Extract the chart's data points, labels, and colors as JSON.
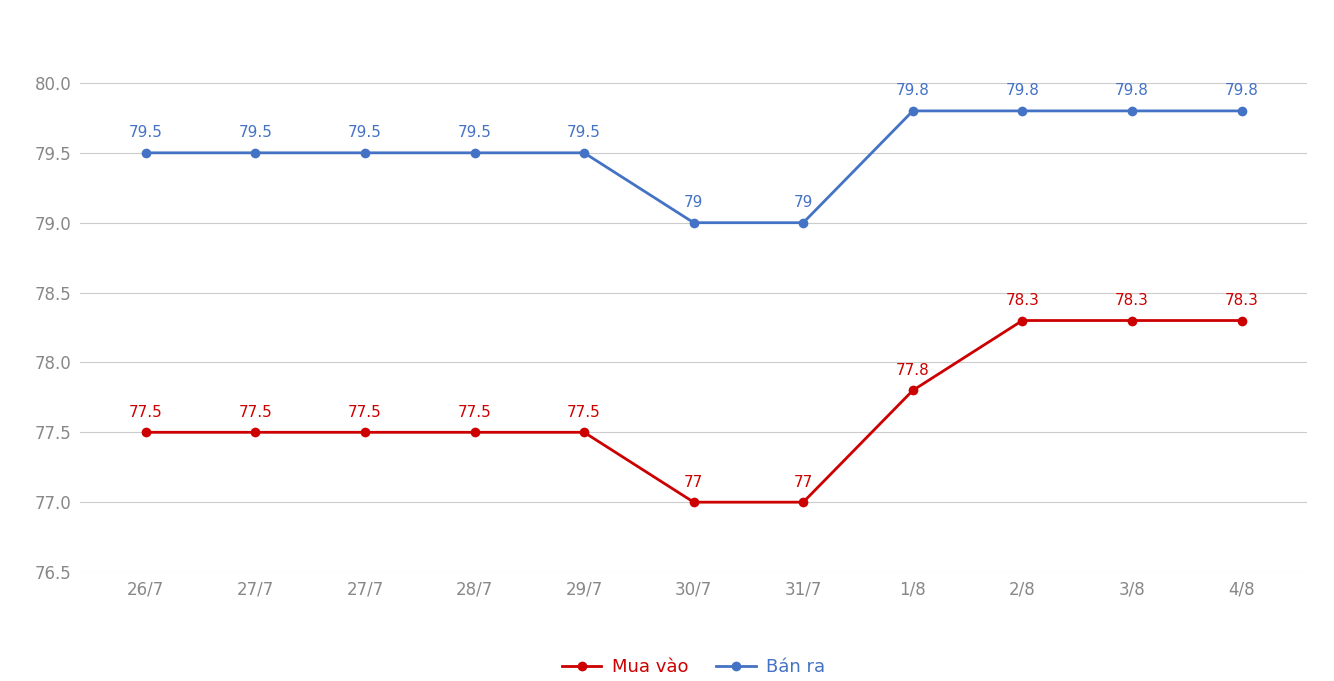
{
  "x_labels": [
    "26/7",
    "27/7",
    "27/7",
    "28/7",
    "29/7",
    "30/7",
    "31/7",
    "1/8",
    "2/8",
    "3/8",
    "4/8"
  ],
  "ban_ra": [
    79.5,
    79.5,
    79.5,
    79.5,
    79.5,
    79.0,
    79.0,
    79.8,
    79.8,
    79.8,
    79.8
  ],
  "mua_vao": [
    77.5,
    77.5,
    77.5,
    77.5,
    77.5,
    77.0,
    77.0,
    77.8,
    78.3,
    78.3,
    78.3
  ],
  "ban_ra_labels": [
    "79.5",
    "79.5",
    "79.5",
    "79.5",
    "79.5",
    "79",
    "79",
    "79.8",
    "79.8",
    "79.8",
    "79.8"
  ],
  "mua_vao_labels": [
    "77.5",
    "77.5",
    "77.5",
    "77.5",
    "77.5",
    "77",
    "77",
    "77.8",
    "78.3",
    "78.3",
    "78.3"
  ],
  "ban_ra_color": "#4472C4",
  "mua_vao_color": "#CC0000",
  "ylim_min": 76.5,
  "ylim_max": 80.35,
  "yticks": [
    76.5,
    77.0,
    77.5,
    78.0,
    78.5,
    79.0,
    79.5,
    80.0
  ],
  "legend_mua_vao": "Mua vào",
  "legend_ban_ra": "Bán ra",
  "background_color": "#ffffff",
  "grid_color": "#cccccc",
  "label_fontsize": 11,
  "tick_fontsize": 12,
  "tick_color": "#888888"
}
